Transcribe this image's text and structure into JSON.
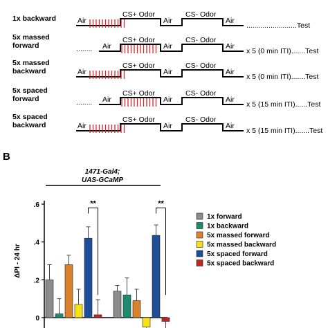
{
  "protocol": {
    "rows": [
      {
        "label_lines": [
          "1x backward"
        ],
        "suffix": ".........................Test",
        "pre_dots": "",
        "backward": true
      },
      {
        "label_lines": [
          "5x massed",
          "forward"
        ],
        "suffix": "x 5 (0 min ITI).......Test",
        "pre_dots": "........",
        "backward": false
      },
      {
        "label_lines": [
          "5x massed",
          "backward"
        ],
        "suffix": "x 5 (0 min ITI).......Test",
        "pre_dots": "",
        "backward": true
      },
      {
        "label_lines": [
          "5x spaced",
          "forward"
        ],
        "suffix": "x 5 (15 min ITI)......Test",
        "pre_dots": "........",
        "backward": false
      },
      {
        "label_lines": [
          "5x spaced",
          "backward"
        ],
        "suffix": "x 5 (15 min ITI).......Test",
        "pre_dots": "",
        "backward": true
      }
    ],
    "labels": {
      "air": "Air",
      "cs_plus": "CS+ Odor",
      "cs_minus": "CS- Odor"
    },
    "shock_color": "#d62728"
  },
  "panel": {
    "letter": "B",
    "genotype_line1": "1471-Gal4;",
    "genotype_line2": "UAS-GCaMP"
  },
  "chart_data": {
    "type": "bar",
    "ylabel": "ΔPI - 24 hr",
    "ylim": [
      -0.05,
      0.62
    ],
    "yticks": [
      {
        "v": 0,
        "label": "0"
      },
      {
        "v": 0.2,
        "label": ".2"
      },
      {
        "v": 0.4,
        "label": ".4"
      },
      {
        "v": 0.6,
        "label": ".6"
      }
    ],
    "series": [
      {
        "name": "1x forward",
        "color": "#8c8c8c",
        "values": [
          0.2,
          0.14
        ],
        "errors": [
          0.08,
          0.03
        ]
      },
      {
        "name": "1x backward",
        "color": "#1f8a70",
        "values": [
          0.02,
          0.12
        ],
        "errors": [
          0.08,
          0.09
        ]
      },
      {
        "name": "5x massed forward",
        "color": "#d9822b",
        "values": [
          0.28,
          0.09
        ],
        "errors": [
          0.05,
          0.06
        ]
      },
      {
        "name": "5x massed backward",
        "color": "#f5e01a",
        "values": [
          0.07,
          -0.05
        ],
        "errors": [
          0.08,
          0.05
        ]
      },
      {
        "name": "5x spaced forward",
        "color": "#1f4e99",
        "values": [
          0.42,
          0.435
        ],
        "errors": [
          0.06,
          0.055
        ]
      },
      {
        "name": "5x spaced backward",
        "color": "#c0261f",
        "values": [
          0.015,
          -0.02
        ],
        "errors": [
          0.08,
          0.06
        ]
      }
    ],
    "significance": [
      {
        "group": 0,
        "label": "**"
      },
      {
        "group": 1,
        "label": "**"
      }
    ]
  }
}
